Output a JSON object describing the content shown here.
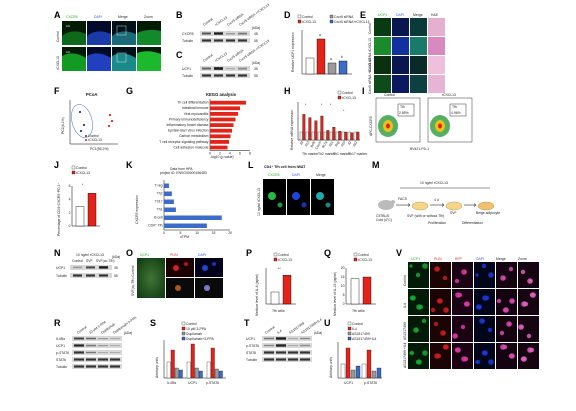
{
  "panel_letters": [
    "A",
    "B",
    "C",
    "D",
    "E",
    "F",
    "G",
    "H",
    "I",
    "J",
    "K",
    "L",
    "M",
    "N",
    "O",
    "P",
    "Q",
    "R",
    "S",
    "T",
    "U",
    "V"
  ],
  "A": {
    "cols": [
      "CXCR5",
      "DAPI",
      "Merge",
      "Zoom"
    ],
    "rows": [
      "Control",
      "rCXCL13"
    ],
    "tissue": "LN"
  },
  "B": {
    "lanes": [
      "Control",
      "rCXCL13",
      "Cxcr5 siRNA",
      "Cxcr5 siRNA +rCXCL13"
    ],
    "proteins": [
      "CXCR5",
      "Tubulin"
    ],
    "unit": "(kDa)",
    "mw": [
      "48",
      "55"
    ]
  },
  "C": {
    "lanes": [
      "Control",
      "rCXCL13",
      "Cxcr5 siRNA",
      "Cxcr5 siRNA +rCXCL13"
    ],
    "proteins": [
      "UCP1",
      "Tubulin"
    ],
    "unit": "(kDa)",
    "mw": [
      "35",
      "55"
    ]
  },
  "D": {
    "legend": [
      "Control",
      "rCXCL13",
      "Cxcr5 siRNA",
      "Cxcr5 siRNA+rCXCL13"
    ],
    "ylabel": "Relative UCP1 expression",
    "sig": [
      "a",
      "a",
      "b"
    ]
  },
  "E": {
    "cols": [
      "UCP1",
      "DAPI",
      "Merge",
      "H&E"
    ],
    "rows": [
      "Control",
      "rCXCL13",
      "Cxcr5 siRNA",
      "Cxcr5 siRNA +rCXCL13"
    ]
  },
  "F": {
    "title": "PCoA",
    "xlabel": "PC1(95.2%)",
    "ylabel": "PC2(4.1%)",
    "legend": [
      "Control",
      "rCXCL13"
    ]
  },
  "G": {
    "title": "KEGG analysis",
    "xlabel": "-log10 (p value)",
    "ticks": [
      "0",
      "2",
      "4",
      "6",
      "8"
    ],
    "chart_data": {
      "type": "bar",
      "categories": [
        "Th cell differentiation",
        "Intestinal immune",
        "Viral myocarditis",
        "Primary immunodeficiency",
        "Inflammatory bowel disease",
        "Epstein-Barr virus infection",
        "Carbon metabolism",
        "T cell receptor signaling pathway",
        "Cell adhesion molecule"
      ],
      "values": [
        7.2,
        6.0,
        5.6,
        5.1,
        4.7,
        4.4,
        4.1,
        3.8,
        3.5
      ],
      "xlim": [
        0,
        8
      ]
    }
  },
  "H": {
    "legend": [
      "Control",
      "rCXCL13"
    ],
    "ylabel": "Relative mRNA expression",
    "genes": [
      "Il4",
      "Il13",
      "Bcl6",
      "Cxcr5",
      "Il17a",
      "Il21",
      "Ifng",
      "Il10",
      "Il2",
      "Il22"
    ],
    "groups": [
      "Tfh marker",
      "Th2 marker",
      "Th1 marker",
      "Th17 marker"
    ],
    "sig": [
      "*",
      "*",
      "*",
      "*",
      "*"
    ]
  },
  "I": {
    "labels": [
      "Control",
      "rCXCL13"
    ],
    "gate": "Tfh",
    "xlabel": "BV421-PD-1",
    "ylabel": "APC-CXCR5",
    "pct": [
      "2.89%",
      "4.96%"
    ]
  },
  "J": {
    "legend": [
      "Control",
      "rCXCL13"
    ],
    "ylabel": "Percentage of CD4⁺CXCR5⁺PD-1⁺",
    "sig": "*",
    "ticks": [
      "0",
      "2",
      "4",
      "6"
    ],
    "chart_data": {
      "type": "bar",
      "categories": [
        "Control",
        "rCXCL13"
      ],
      "values": [
        2.9,
        4.9
      ],
      "ylim": [
        0,
        6
      ]
    }
  },
  "K": {
    "header": [
      "Data from HPA",
      "project ID: ENSG00000156483"
    ],
    "ylabel": "CXCR5 expression",
    "xlabel": "nTPM",
    "ticks": [
      "0",
      "5",
      "10",
      "15",
      "20"
    ],
    "chart_data": {
      "type": "bar",
      "categories": [
        "T-reg",
        "Th2",
        "Th17",
        "Th1",
        "B cell",
        "CD4⁺ Tfh"
      ],
      "values": [
        1.5,
        2.4,
        3.0,
        3.6,
        17.5,
        13.0
      ],
      "xlim": [
        0,
        20
      ]
    }
  },
  "L": {
    "title": "CD4⁺ Tfh cell from iWAT",
    "cols": [
      "CXCR5",
      "DAPI",
      "Merge"
    ],
    "row": "10 ng/ml rCXCL13"
  },
  "M": {
    "concentration": "10 ng/ml rCXCL13",
    "mouse": "C57BL/6",
    "housing": "Cold (4°C)",
    "facs": "FACS",
    "svf1": "SVF (with or without Tfh)",
    "svf2": "SVF",
    "beige": "Beige adipocyte",
    "duration": "4 d",
    "phases": [
      "Proliferation",
      "Differentiation"
    ]
  },
  "N": {
    "header": "10 ng/ml rCXCL13",
    "lanes": [
      "Control",
      "SVF",
      "SVF(co-Tfh)"
    ],
    "proteins": [
      "UCP1",
      "Tubulin"
    ],
    "unit": "(kDa)",
    "mw": [
      "35",
      "55"
    ]
  },
  "O": {
    "cols": [
      "UCP1",
      "PLIN",
      "DAPI"
    ],
    "row": "SVF(co-Tfh) Control"
  },
  "P": {
    "legend": [
      "Control",
      "rCXCL13"
    ],
    "ylabel": "Medium level of IL-4 (pg/ml)",
    "xlabel": "Tfh cells",
    "sig": "**",
    "chart_data": {
      "type": "bar",
      "categories": [
        "Control",
        "rCXCL13"
      ],
      "values": [
        10,
        24
      ],
      "ylim": [
        0,
        30
      ]
    }
  },
  "Q": {
    "legend": [
      "Control",
      "rCXCL13"
    ],
    "ylabel": "Medium level of IL-13 (pg/ml)",
    "xlabel": "Tfh cells",
    "ticks": [
      "0",
      "5",
      "10",
      "15",
      "20"
    ],
    "chart_data": {
      "type": "bar",
      "categories": [
        "Control",
        "rCXCL13"
      ],
      "values": [
        14,
        15
      ],
      "ylim": [
        0,
        20
      ]
    }
  },
  "R": {
    "lanes": [
      "Control",
      "10 μM 3-PPA",
      "Dupilumab",
      "Dupilumab+3-PPA"
    ],
    "proteins": [
      "IL4Rα",
      "UCP1",
      "p-STAT6",
      "STAT6",
      "Tubulin"
    ],
    "unit": "(kDa)"
  },
  "S": {
    "legend": [
      "Control",
      "10 μM 3-PPA",
      "Dupilumab",
      "Dupilumab+3-PPA"
    ],
    "ylabel": "Arbitrary units",
    "groups": [
      "IL4Rα",
      "UCP1",
      "p-STAT6"
    ]
  },
  "T": {
    "lanes": [
      "Control",
      "IL4",
      "AS1517499",
      "AS1517499+IL4"
    ],
    "proteins": [
      "UCP1",
      "p-STAT6",
      "STAT6",
      "Tubulin"
    ],
    "unit": "(kDa)"
  },
  "U": {
    "legend": [
      "Control",
      "IL4",
      "AS1517499",
      "AS1517499+IL4"
    ],
    "ylabel": "Arbitrary units",
    "groups": [
      "UCP1",
      "p-STAT6"
    ]
  },
  "V": {
    "cols": [
      "UCP1",
      "PLIN",
      "RFP",
      "DAPI",
      "Merge",
      "Zoom"
    ],
    "rows": [
      "Control",
      "IL4",
      "AS1517499",
      "AS1517499 +IL4"
    ]
  },
  "colors": {
    "control": "#ffffff",
    "treat": "#e2231a",
    "grey": "#9a9a9a",
    "blue": "#3c6cc8",
    "navy": "#1f3a8a"
  }
}
